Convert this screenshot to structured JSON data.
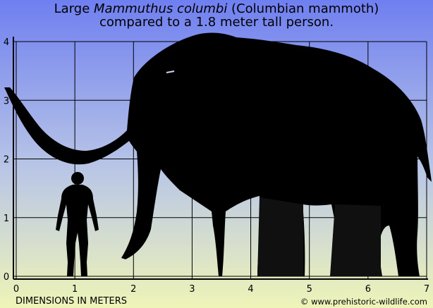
{
  "title": {
    "prefix": "Large ",
    "species": "Mammuthus columbi",
    "suffix": " (Columbian mammoth)",
    "line2": "compared to a 1.8 meter tall person."
  },
  "axes": {
    "x_ticks": [
      "0",
      "1",
      "2",
      "3",
      "4",
      "5",
      "6",
      "7"
    ],
    "y_ticks": [
      "0",
      "1",
      "2",
      "3",
      "4"
    ],
    "x_range_m": [
      0,
      7
    ],
    "y_range_m": [
      0,
      4
    ],
    "grid": true
  },
  "scale": {
    "person_height_m": 1.8,
    "person_position_m": 1.1
  },
  "footer": {
    "dimensions_label": "DIMENSIONS IN METERS",
    "credit": "© www.prehistoric-wildlife.com"
  },
  "colors": {
    "sky_top": "#6f7ff0",
    "sky_bottom": "#eef4b8",
    "silhouette": "#000000",
    "grid": "#000000"
  }
}
